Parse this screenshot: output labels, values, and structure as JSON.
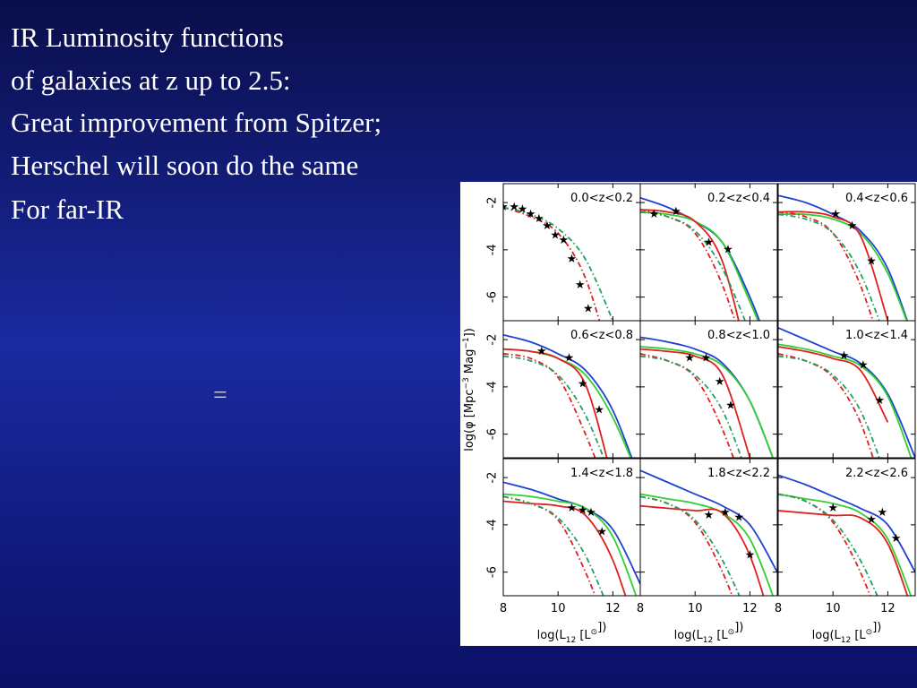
{
  "slide": {
    "text_lines": [
      "IR Luminosity functions",
      "of galaxies at z up to 2.5:",
      "Great improvement from Spitzer;",
      "Herschel will soon do the same",
      "For far-IR"
    ],
    "symbol": "="
  },
  "chart_data": {
    "type": "line",
    "x_label": [
      "log(L",
      "12",
      " [L",
      "⊙",
      "])"
    ],
    "y_label": [
      "log(φ [Mpc",
      "−3",
      " Mag",
      "−1",
      "])"
    ],
    "xlim": [
      8,
      13
    ],
    "ylim": [
      -7,
      -1.2
    ],
    "xticks": [
      8,
      10,
      12
    ],
    "yticks": [
      -2,
      -4,
      -6
    ],
    "x": [
      8,
      9,
      10,
      11,
      12,
      13
    ],
    "panels": [
      {
        "title": "0.0<z<0.2",
        "series": [
          {
            "color": "#e02020",
            "style": "dashdot",
            "values": [
              -2.2,
              -2.6,
              -3.3,
              -5.2,
              -9,
              null
            ]
          },
          {
            "color": "#20a060",
            "style": "dashdot",
            "values": [
              -2.2,
              -2.5,
              -3.1,
              -4.4,
              -7,
              null
            ]
          }
        ],
        "points": {
          "x": [
            8,
            8.4,
            8.7,
            9,
            9.3,
            9.6,
            9.9,
            10.2,
            10.5,
            10.8,
            11.1
          ],
          "y": [
            -2.2,
            -2.2,
            -2.3,
            -2.5,
            -2.7,
            -3.0,
            -3.4,
            -3.6,
            -4.4,
            -5.5,
            -6.5
          ]
        }
      },
      {
        "title": "0.2<z<0.4",
        "series": [
          {
            "color": "#2040d0",
            "style": "solid",
            "values": [
              -1.8,
              -2.2,
              -2.8,
              -3.7,
              -6,
              -9
            ]
          },
          {
            "color": "#30d030",
            "style": "solid",
            "values": [
              -2.4,
              -2.5,
              -2.8,
              -3.7,
              -6.2,
              -9
            ]
          },
          {
            "color": "#e02020",
            "style": "solid",
            "values": [
              -2.3,
              -2.4,
              -2.8,
              -4.5,
              -9,
              null
            ]
          },
          {
            "color": "#e02020",
            "style": "dashdot",
            "values": [
              -2.3,
              -2.6,
              -3.3,
              -5.5,
              -9,
              null
            ]
          },
          {
            "color": "#20a060",
            "style": "dashdot",
            "values": [
              -2.4,
              -2.6,
              -3.2,
              -4.8,
              -7.5,
              null
            ]
          }
        ],
        "points": {
          "x": [
            8.5,
            9.3,
            10.5,
            11.2
          ],
          "y": [
            -2.5,
            -2.4,
            -3.7,
            -4.0
          ]
        }
      },
      {
        "title": "0.4<z<0.6",
        "series": [
          {
            "color": "#2040d0",
            "style": "solid",
            "values": [
              -1.7,
              -2.0,
              -2.5,
              -3.2,
              -4.8,
              -8
            ]
          },
          {
            "color": "#30d030",
            "style": "solid",
            "values": [
              -2.5,
              -2.5,
              -2.7,
              -3.3,
              -5,
              -8
            ]
          },
          {
            "color": "#e02020",
            "style": "solid",
            "values": [
              -2.4,
              -2.4,
              -2.6,
              -3.4,
              -7,
              null
            ]
          },
          {
            "color": "#e02020",
            "style": "dashdot",
            "values": [
              -2.4,
              -2.6,
              -3.3,
              -5.5,
              -9,
              null
            ]
          },
          {
            "color": "#20a060",
            "style": "dashdot",
            "values": [
              -2.5,
              -2.7,
              -3.3,
              -5,
              -8,
              null
            ]
          }
        ],
        "points": {
          "x": [
            10.1,
            10.7,
            11.4
          ],
          "y": [
            -2.5,
            -3.0,
            -4.5
          ]
        }
      },
      {
        "title": "0.6<z<0.8",
        "series": [
          {
            "color": "#2040d0",
            "style": "solid",
            "values": [
              -1.8,
              -2.1,
              -2.6,
              -3.3,
              -5.0,
              -8
            ]
          },
          {
            "color": "#30d030",
            "style": "solid",
            "values": [
              -2.4,
              -2.5,
              -2.8,
              -3.5,
              -5.3,
              -8
            ]
          },
          {
            "color": "#e02020",
            "style": "solid",
            "values": [
              -2.4,
              -2.5,
              -2.8,
              -3.9,
              -8,
              null
            ]
          },
          {
            "color": "#e02020",
            "style": "dashdot",
            "values": [
              -2.6,
              -2.8,
              -3.6,
              -6,
              -9,
              null
            ]
          },
          {
            "color": "#20a060",
            "style": "dashdot",
            "values": [
              -2.7,
              -2.9,
              -3.5,
              -5.2,
              -8,
              null
            ]
          }
        ],
        "points": {
          "x": [
            9.4,
            10.4,
            10.9,
            11.5
          ],
          "y": [
            -2.5,
            -2.8,
            -3.9,
            -5.0
          ]
        }
      },
      {
        "title": "0.8<z<1.0",
        "series": [
          {
            "color": "#2040d0",
            "style": "solid",
            "values": [
              -1.9,
              -2.1,
              -2.4,
              -3.0,
              -4.6,
              -7.5
            ]
          },
          {
            "color": "#30d030",
            "style": "solid",
            "values": [
              -2.3,
              -2.4,
              -2.6,
              -3.1,
              -4.6,
              -7.5
            ]
          },
          {
            "color": "#e02020",
            "style": "solid",
            "values": [
              -2.4,
              -2.5,
              -2.7,
              -3.5,
              -7,
              null
            ]
          },
          {
            "color": "#e02020",
            "style": "dashdot",
            "values": [
              -2.6,
              -2.9,
              -3.6,
              -5.8,
              -9,
              null
            ]
          },
          {
            "color": "#20a060",
            "style": "dashdot",
            "values": [
              -2.7,
              -2.9,
              -3.5,
              -5,
              -8,
              null
            ]
          }
        ],
        "points": {
          "x": [
            9.8,
            10.4,
            10.9,
            11.3
          ],
          "y": [
            -2.8,
            -2.8,
            -3.8,
            -4.8
          ]
        }
      },
      {
        "title": "1.0<z<1.4",
        "series": [
          {
            "color": "#2040d0",
            "style": "solid",
            "values": [
              -1.5,
              -2.0,
              -2.5,
              -3.0,
              -4.3,
              -7
            ]
          },
          {
            "color": "#30d030",
            "style": "solid",
            "values": [
              -2.2,
              -2.4,
              -2.7,
              -3.1,
              -4.4,
              -7.5
            ]
          },
          {
            "color": "#e02020",
            "style": "solid",
            "values": [
              -2.3,
              -2.5,
              -2.8,
              -3.3,
              -5.5,
              null
            ]
          },
          {
            "color": "#e02020",
            "style": "dashdot",
            "values": [
              -2.6,
              -2.9,
              -3.6,
              -5.5,
              -9,
              null
            ]
          },
          {
            "color": "#20a060",
            "style": "dashdot",
            "values": [
              -2.7,
              -2.9,
              -3.5,
              -5,
              -8,
              null
            ]
          }
        ],
        "points": {
          "x": [
            10.4,
            11.1,
            11.7
          ],
          "y": [
            -2.7,
            -3.1,
            -4.6
          ]
        }
      },
      {
        "title": "1.4<z<1.8",
        "series": [
          {
            "color": "#2040d0",
            "style": "solid",
            "values": [
              -2.2,
              -2.5,
              -2.9,
              -3.3,
              -4.2,
              -6.5
            ]
          },
          {
            "color": "#30d030",
            "style": "solid",
            "values": [
              -2.7,
              -2.8,
              -3.0,
              -3.3,
              -4.5,
              -7.5
            ]
          },
          {
            "color": "#e02020",
            "style": "solid",
            "values": [
              -3.0,
              -3.1,
              -3.2,
              -3.6,
              -5.5,
              -9
            ]
          },
          {
            "color": "#e02020",
            "style": "dashdot",
            "values": [
              -2.8,
              -3.1,
              -3.8,
              -6,
              -9,
              null
            ]
          },
          {
            "color": "#20a060",
            "style": "dashdot",
            "values": [
              -2.8,
              -3.1,
              -3.7,
              -5.3,
              -8,
              null
            ]
          }
        ],
        "points": {
          "x": [
            10.5,
            10.9,
            11.2,
            11.6
          ],
          "y": [
            -3.3,
            -3.4,
            -3.5,
            -4.3
          ]
        }
      },
      {
        "title": "1.8<z<2.2",
        "series": [
          {
            "color": "#2040d0",
            "style": "solid",
            "values": [
              -1.7,
              -2.2,
              -2.7,
              -3.2,
              -4.0,
              -6
            ]
          },
          {
            "color": "#30d030",
            "style": "solid",
            "values": [
              -2.7,
              -2.9,
              -3.1,
              -3.5,
              -4.6,
              -7.5
            ]
          },
          {
            "color": "#e02020",
            "style": "solid",
            "values": [
              -3.2,
              -3.3,
              -3.4,
              -3.5,
              -5.3,
              -9
            ]
          },
          {
            "color": "#e02020",
            "style": "dashdot",
            "values": [
              -2.8,
              -3.1,
              -3.9,
              -6,
              -9,
              null
            ]
          },
          {
            "color": "#20a060",
            "style": "dashdot",
            "values": [
              -2.8,
              -3.1,
              -3.8,
              -5.5,
              -8,
              null
            ]
          }
        ],
        "points": {
          "x": [
            10.5,
            11.1,
            11.6,
            12
          ],
          "y": [
            -3.6,
            -3.5,
            -3.7,
            -5.3
          ]
        }
      },
      {
        "title": "2.2<z<2.6",
        "series": [
          {
            "color": "#2040d0",
            "style": "solid",
            "values": [
              -1.9,
              -2.3,
              -2.8,
              -3.3,
              -4.0,
              -6
            ]
          },
          {
            "color": "#30d030",
            "style": "solid",
            "values": [
              -2.7,
              -2.9,
              -3.1,
              -3.5,
              -4.6,
              -7.5
            ]
          },
          {
            "color": "#e02020",
            "style": "solid",
            "values": [
              -3.4,
              -3.5,
              -3.6,
              -3.7,
              -4.8,
              -8
            ]
          },
          {
            "color": "#e02020",
            "style": "dashdot",
            "values": [
              -2.7,
              -3.0,
              -3.9,
              -6,
              -9,
              null
            ]
          },
          {
            "color": "#20a060",
            "style": "dashdot",
            "values": [
              -2.7,
              -3.0,
              -3.8,
              -5.5,
              -8,
              null
            ]
          }
        ],
        "points": {
          "x": [
            10,
            11.4,
            11.8,
            12.3
          ],
          "y": [
            -3.3,
            -3.8,
            -3.5,
            -4.6
          ]
        }
      }
    ]
  }
}
